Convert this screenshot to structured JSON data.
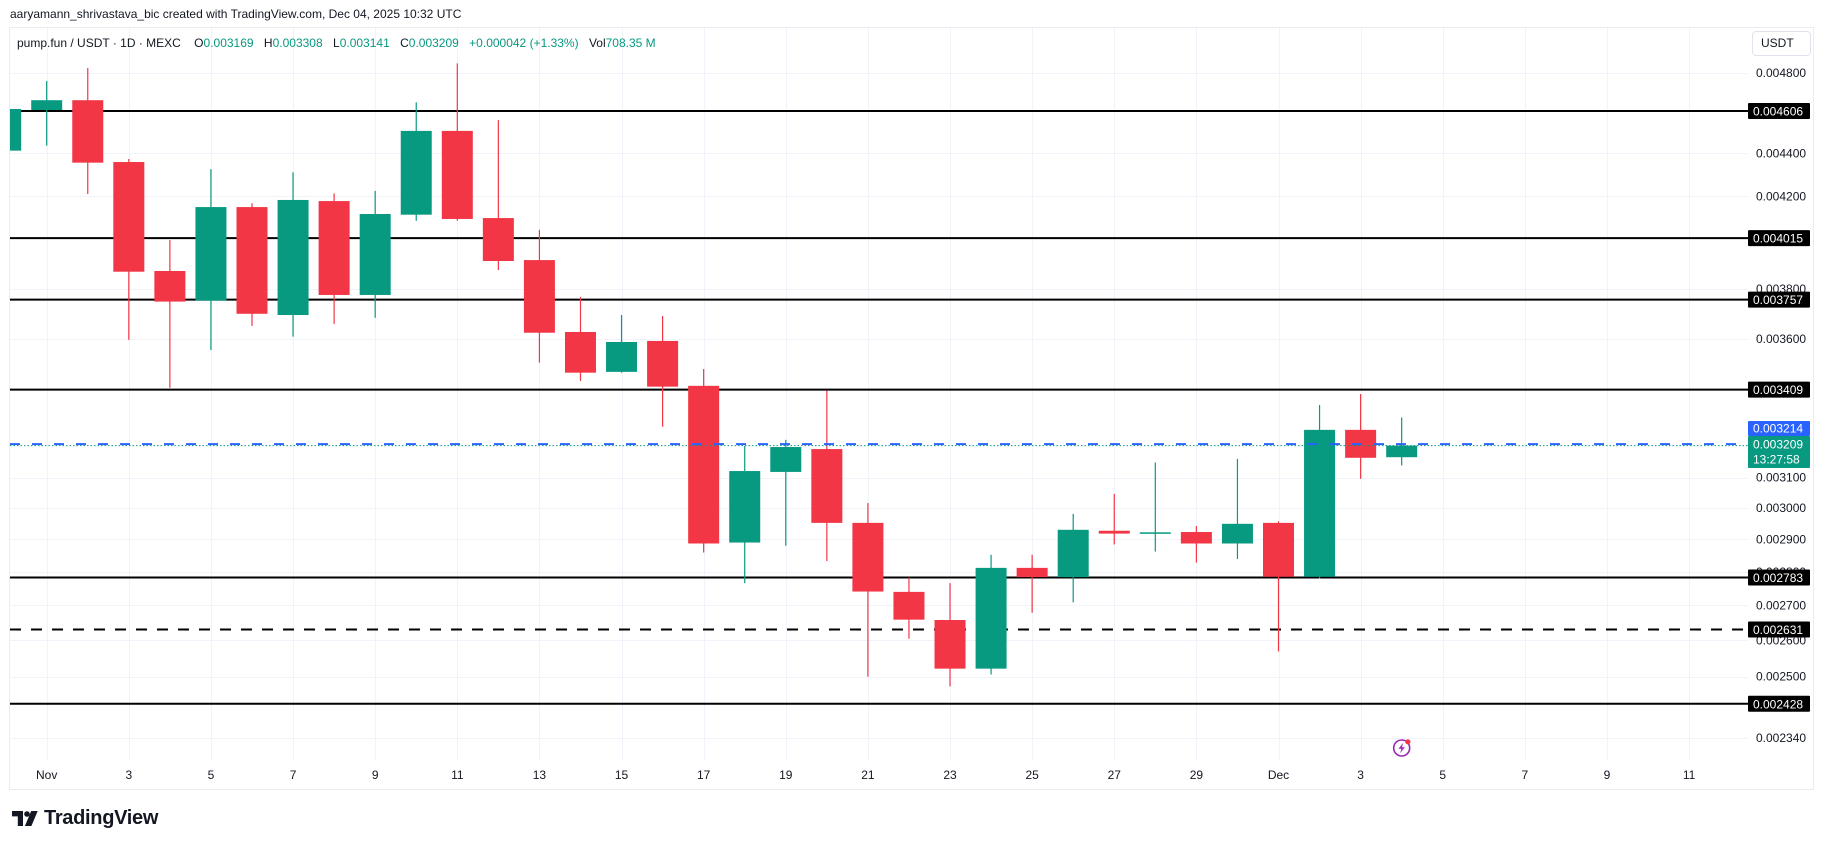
{
  "header": {
    "attribution": "aaryamann_shrivastava_bic created with TradingView.com, Dec 04, 2025 10:32 UTC"
  },
  "legend": {
    "symbol": "pump.fun / USDT · 1D · MEXC",
    "open_label": "O",
    "open": "0.003169",
    "high_label": "H",
    "high": "0.003308",
    "low_label": "L",
    "low": "0.003141",
    "close_label": "C",
    "close": "0.003209",
    "change": "+0.000042 (+1.33%)",
    "volume_label": "Vol",
    "volume": "708.35 M"
  },
  "price_axis": {
    "currency_button": "USDT"
  },
  "footer": {
    "logo_text": "TradingView",
    "logo_icon": "tradingview-logo-icon"
  },
  "colors": {
    "up": "#089981",
    "down": "#F23645",
    "level_line": "#000000",
    "price_marker": "#2962FF",
    "grid": "#F0F3FA",
    "event_icon": "#9C27B0"
  },
  "chart_data": {
    "type": "candlestick",
    "title": "pump.fun / USDT · 1D · MEXC",
    "xlabel": "",
    "ylabel": "USDT",
    "scale": "log",
    "ylim": [
      0.002285,
      0.005038
    ],
    "grid": true,
    "y_ticks": [
      "0.004800",
      "0.004400",
      "0.004200",
      "0.003800",
      "0.003600",
      "0.003100",
      "0.003000",
      "0.002900",
      "0.002800",
      "0.002700",
      "0.002600",
      "0.002500",
      "0.002340"
    ],
    "x_ticks": [
      {
        "label": "Nov",
        "index": 0
      },
      {
        "label": "3",
        "index": 2
      },
      {
        "label": "5",
        "index": 4
      },
      {
        "label": "7",
        "index": 6
      },
      {
        "label": "9",
        "index": 8
      },
      {
        "label": "11",
        "index": 10
      },
      {
        "label": "13",
        "index": 12
      },
      {
        "label": "15",
        "index": 14
      },
      {
        "label": "17",
        "index": 16
      },
      {
        "label": "19",
        "index": 18
      },
      {
        "label": "21",
        "index": 20
      },
      {
        "label": "23",
        "index": 22
      },
      {
        "label": "25",
        "index": 24
      },
      {
        "label": "27",
        "index": 26
      },
      {
        "label": "29",
        "index": 28
      },
      {
        "label": "Dec",
        "index": 30
      },
      {
        "label": "3",
        "index": 32
      },
      {
        "label": "5",
        "index": 34
      },
      {
        "label": "7",
        "index": 36
      },
      {
        "label": "9",
        "index": 38
      },
      {
        "label": "11",
        "index": 40
      }
    ],
    "candles": [
      {
        "date": "Oct 31",
        "i": -1,
        "o": 0.004413,
        "h": 0.004616,
        "l": 0.004413,
        "c": 0.004616
      },
      {
        "date": "Nov 1",
        "i": 0,
        "o": 0.004611,
        "h": 0.004758,
        "l": 0.004437,
        "c": 0.00466
      },
      {
        "date": "Nov 2",
        "i": 1,
        "o": 0.00466,
        "h": 0.004825,
        "l": 0.004211,
        "c": 0.004356
      },
      {
        "date": "Nov 3",
        "i": 2,
        "o": 0.004359,
        "h": 0.004373,
        "l": 0.003597,
        "c": 0.003872
      },
      {
        "date": "Nov 4",
        "i": 3,
        "o": 0.003875,
        "h": 0.004007,
        "l": 0.003416,
        "c": 0.003749
      },
      {
        "date": "Nov 5",
        "i": 4,
        "o": 0.003753,
        "h": 0.004326,
        "l": 0.003558,
        "c": 0.004152
      },
      {
        "date": "Nov 6",
        "i": 5,
        "o": 0.004152,
        "h": 0.004169,
        "l": 0.003652,
        "c": 0.0037
      },
      {
        "date": "Nov 7",
        "i": 6,
        "o": 0.003695,
        "h": 0.004311,
        "l": 0.00361,
        "c": 0.004184
      },
      {
        "date": "Nov 8",
        "i": 7,
        "o": 0.004179,
        "h": 0.004214,
        "l": 0.00366,
        "c": 0.003776
      },
      {
        "date": "Nov 9",
        "i": 8,
        "o": 0.003776,
        "h": 0.004225,
        "l": 0.003684,
        "c": 0.004121
      },
      {
        "date": "Nov 10",
        "i": 9,
        "o": 0.004118,
        "h": 0.004649,
        "l": 0.004091,
        "c": 0.004508
      },
      {
        "date": "Nov 11",
        "i": 10,
        "o": 0.004508,
        "h": 0.004849,
        "l": 0.004091,
        "c": 0.004099
      },
      {
        "date": "Nov 12",
        "i": 11,
        "o": 0.004103,
        "h": 0.004561,
        "l": 0.003879,
        "c": 0.003917
      },
      {
        "date": "Nov 13",
        "i": 12,
        "o": 0.003921,
        "h": 0.004051,
        "l": 0.00351,
        "c": 0.003625
      },
      {
        "date": "Nov 14",
        "i": 13,
        "o": 0.003628,
        "h": 0.003767,
        "l": 0.003441,
        "c": 0.003472
      },
      {
        "date": "Nov 15",
        "i": 14,
        "o": 0.003475,
        "h": 0.003695,
        "l": 0.003472,
        "c": 0.003589
      },
      {
        "date": "Nov 16",
        "i": 15,
        "o": 0.003593,
        "h": 0.003691,
        "l": 0.003275,
        "c": 0.00342
      },
      {
        "date": "Nov 17",
        "i": 16,
        "o": 0.003423,
        "h": 0.003486,
        "l": 0.002859,
        "c": 0.002887
      },
      {
        "date": "Nov 18",
        "i": 17,
        "o": 0.00289,
        "h": 0.003208,
        "l": 0.002766,
        "c": 0.003122
      },
      {
        "date": "Nov 19",
        "i": 18,
        "o": 0.003119,
        "h": 0.003229,
        "l": 0.00288,
        "c": 0.003204
      },
      {
        "date": "Nov 20",
        "i": 19,
        "o": 0.003197,
        "h": 0.003405,
        "l": 0.002833,
        "c": 0.002952
      },
      {
        "date": "Nov 21",
        "i": 20,
        "o": 0.002952,
        "h": 0.003016,
        "l": 0.0025,
        "c": 0.002741
      },
      {
        "date": "Nov 22",
        "i": 21,
        "o": 0.00274,
        "h": 0.002783,
        "l": 0.002605,
        "c": 0.002659
      },
      {
        "date": "Nov 23",
        "i": 22,
        "o": 0.002658,
        "h": 0.002766,
        "l": 0.002474,
        "c": 0.002522
      },
      {
        "date": "Nov 24",
        "i": 23,
        "o": 0.002522,
        "h": 0.002852,
        "l": 0.002506,
        "c": 0.002812
      },
      {
        "date": "Nov 25",
        "i": 24,
        "o": 0.002812,
        "h": 0.002852,
        "l": 0.002679,
        "c": 0.002784
      },
      {
        "date": "Nov 26",
        "i": 25,
        "o": 0.002784,
        "h": 0.002981,
        "l": 0.002709,
        "c": 0.00293
      },
      {
        "date": "Nov 27",
        "i": 26,
        "o": 0.002927,
        "h": 0.003046,
        "l": 0.002884,
        "c": 0.002918
      },
      {
        "date": "Nov 28",
        "i": 27,
        "o": 0.002921,
        "h": 0.003151,
        "l": 0.002862,
        "c": 0.002922
      },
      {
        "date": "Nov 29",
        "i": 28,
        "o": 0.002923,
        "h": 0.002942,
        "l": 0.002828,
        "c": 0.002887
      },
      {
        "date": "Nov 30",
        "i": 29,
        "o": 0.002887,
        "h": 0.003163,
        "l": 0.002839,
        "c": 0.002949
      },
      {
        "date": "Dec 1",
        "i": 30,
        "o": 0.002952,
        "h": 0.002957,
        "l": 0.002569,
        "c": 0.002785
      },
      {
        "date": "Dec 2",
        "i": 31,
        "o": 0.002785,
        "h": 0.003353,
        "l": 0.00278,
        "c": 0.003264
      },
      {
        "date": "Dec 3",
        "i": 32,
        "o": 0.003264,
        "h": 0.003393,
        "l": 0.003096,
        "c": 0.003167
      },
      {
        "date": "Dec 4",
        "i": 33,
        "o": 0.003169,
        "h": 0.003308,
        "l": 0.003141,
        "c": 0.003209
      }
    ],
    "horizontal_levels": [
      {
        "price": "0.004606",
        "style": "solid"
      },
      {
        "price": "0.004015",
        "style": "solid"
      },
      {
        "price": "0.003757",
        "style": "solid"
      },
      {
        "price": "0.003409",
        "style": "solid"
      },
      {
        "price": "0.002783",
        "style": "solid"
      },
      {
        "price": "0.002631",
        "style": "dashed"
      },
      {
        "price": "0.002428",
        "style": "solid"
      }
    ],
    "price_marker": {
      "value": "0.003214"
    },
    "current_price": {
      "value": "0.003209",
      "countdown": "13:27:58"
    },
    "event_marker": {
      "icon": "lightning-icon",
      "index": 33
    }
  }
}
